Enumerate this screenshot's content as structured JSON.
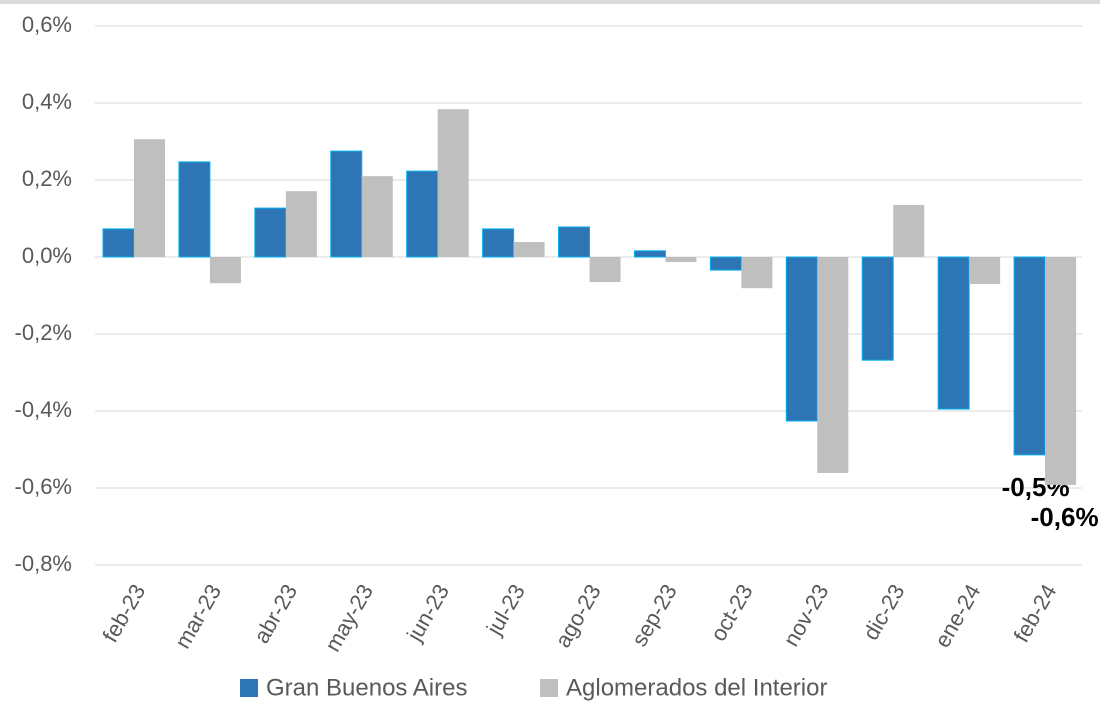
{
  "chart_data": {
    "type": "bar",
    "categories": [
      "feb-23",
      "mar-23",
      "abr-23",
      "may-23",
      "jun-23",
      "jul-23",
      "ago-23",
      "sep-23",
      "oct-23",
      "nov-23",
      "dic-23",
      "ene-24",
      "feb-24"
    ],
    "series": [
      {
        "name": "Gran Buenos Aires",
        "color": "#2e75b6",
        "values": [
          0.073,
          0.247,
          0.127,
          0.275,
          0.223,
          0.073,
          0.078,
          0.016,
          -0.034,
          -0.426,
          -0.268,
          -0.395,
          -0.514
        ],
        "value_labels": [
          null,
          null,
          null,
          null,
          null,
          null,
          null,
          null,
          null,
          null,
          null,
          null,
          "-0,5%"
        ]
      },
      {
        "name": "Aglomerados del Interior",
        "color": "#bfbfbf",
        "values": [
          0.306,
          -0.068,
          0.171,
          0.21,
          0.384,
          0.039,
          -0.065,
          -0.013,
          -0.081,
          -0.561,
          0.135,
          -0.07,
          -0.592
        ],
        "value_labels": [
          null,
          null,
          null,
          null,
          null,
          null,
          null,
          null,
          null,
          null,
          null,
          null,
          "-0,6%"
        ]
      }
    ],
    "ylim": [
      -0.8,
      0.6
    ],
    "yticks": [
      {
        "value": -0.8,
        "label": "-0,8%"
      },
      {
        "value": -0.6,
        "label": "-0,6%"
      },
      {
        "value": -0.4,
        "label": "-0,4%"
      },
      {
        "value": -0.2,
        "label": "-0,2%"
      },
      {
        "value": 0,
        "label": "0,0%"
      },
      {
        "value": 0.2,
        "label": "0,2%"
      },
      {
        "value": 0.4,
        "label": "0,4%"
      },
      {
        "value": 0.6,
        "label": "0,6%"
      }
    ],
    "grid": true,
    "legend": "bottom"
  }
}
